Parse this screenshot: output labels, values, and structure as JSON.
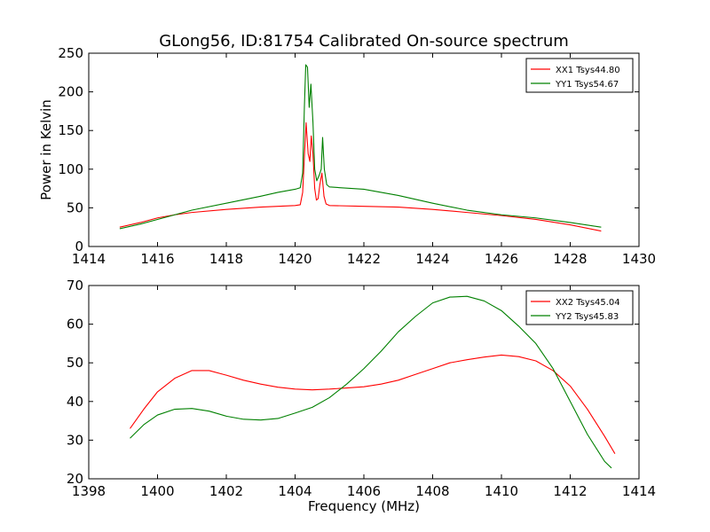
{
  "figure": {
    "title": "GLong56, ID:81754 Calibrated On-source spectrum"
  },
  "chart_data": [
    {
      "type": "line",
      "title": "GLong56, ID:81754 Calibrated On-source spectrum",
      "xlabel": "",
      "ylabel": "Power in Kelvin",
      "xlim": [
        1414,
        1430
      ],
      "ylim": [
        0,
        250
      ],
      "xticks": [
        "1414",
        "1416",
        "1418",
        "1420",
        "1422",
        "1424",
        "1426",
        "1428",
        "1430"
      ],
      "yticks": [
        "0",
        "50",
        "100",
        "150",
        "200",
        "250"
      ],
      "grid": false,
      "legend_position": "top-right",
      "series": [
        {
          "name": "XX1 Tsys44.80",
          "color": "#ff0000",
          "points": [
            [
              1414.9,
              25
            ],
            [
              1415.5,
              31
            ],
            [
              1416.0,
              37
            ],
            [
              1416.5,
              41
            ],
            [
              1417.0,
              44
            ],
            [
              1418.0,
              48
            ],
            [
              1419.0,
              51
            ],
            [
              1419.5,
              52
            ],
            [
              1420.0,
              53
            ],
            [
              1420.15,
              54
            ],
            [
              1420.22,
              70
            ],
            [
              1420.28,
              125
            ],
            [
              1420.32,
              160
            ],
            [
              1420.38,
              120
            ],
            [
              1420.43,
              110
            ],
            [
              1420.47,
              143
            ],
            [
              1420.52,
              120
            ],
            [
              1420.57,
              75
            ],
            [
              1420.62,
              60
            ],
            [
              1420.67,
              62
            ],
            [
              1420.72,
              80
            ],
            [
              1420.78,
              95
            ],
            [
              1420.84,
              65
            ],
            [
              1420.9,
              55
            ],
            [
              1421.0,
              53
            ],
            [
              1422.0,
              52
            ],
            [
              1423.0,
              51
            ],
            [
              1424.0,
              48
            ],
            [
              1425.0,
              44
            ],
            [
              1426.0,
              40
            ],
            [
              1427.0,
              35
            ],
            [
              1428.0,
              28
            ],
            [
              1428.9,
              20
            ]
          ]
        },
        {
          "name": "YY1 Tsys54.67",
          "color": "#008000",
          "points": [
            [
              1414.9,
              23
            ],
            [
              1415.5,
              29
            ],
            [
              1416.0,
              35
            ],
            [
              1416.5,
              41
            ],
            [
              1417.0,
              47
            ],
            [
              1418.0,
              56
            ],
            [
              1419.0,
              65
            ],
            [
              1419.5,
              70
            ],
            [
              1420.0,
              74
            ],
            [
              1420.15,
              76
            ],
            [
              1420.22,
              95
            ],
            [
              1420.27,
              180
            ],
            [
              1420.31,
              235
            ],
            [
              1420.36,
              232
            ],
            [
              1420.41,
              180
            ],
            [
              1420.46,
              210
            ],
            [
              1420.52,
              160
            ],
            [
              1420.57,
              100
            ],
            [
              1420.63,
              85
            ],
            [
              1420.7,
              92
            ],
            [
              1420.76,
              100
            ],
            [
              1420.8,
              141
            ],
            [
              1420.85,
              100
            ],
            [
              1420.92,
              80
            ],
            [
              1421.0,
              77
            ],
            [
              1422.0,
              74
            ],
            [
              1423.0,
              66
            ],
            [
              1424.0,
              56
            ],
            [
              1425.0,
              47
            ],
            [
              1426.0,
              41
            ],
            [
              1427.0,
              37
            ],
            [
              1428.0,
              31
            ],
            [
              1428.9,
              25
            ]
          ]
        }
      ]
    },
    {
      "type": "line",
      "title": "",
      "xlabel": "Frequency (MHz)",
      "ylabel": "",
      "xlim": [
        1398,
        1414
      ],
      "ylim": [
        20,
        70
      ],
      "xticks": [
        "1398",
        "1400",
        "1402",
        "1404",
        "1406",
        "1408",
        "1410",
        "1412",
        "1414"
      ],
      "yticks": [
        "20",
        "30",
        "40",
        "50",
        "60",
        "70"
      ],
      "grid": false,
      "legend_position": "top-right",
      "series": [
        {
          "name": "XX2 Tsys45.04",
          "color": "#ff0000",
          "points": [
            [
              1399.2,
              33
            ],
            [
              1399.6,
              38
            ],
            [
              1400.0,
              42.5
            ],
            [
              1400.5,
              46
            ],
            [
              1401.0,
              48
            ],
            [
              1401.5,
              48
            ],
            [
              1402.0,
              46.8
            ],
            [
              1402.5,
              45.5
            ],
            [
              1403.0,
              44.5
            ],
            [
              1403.5,
              43.7
            ],
            [
              1404.0,
              43.2
            ],
            [
              1404.5,
              43
            ],
            [
              1405.0,
              43.2
            ],
            [
              1405.5,
              43.5
            ],
            [
              1406.0,
              43.8
            ],
            [
              1406.5,
              44.5
            ],
            [
              1407.0,
              45.5
            ],
            [
              1407.5,
              47
            ],
            [
              1408.0,
              48.5
            ],
            [
              1408.5,
              50
            ],
            [
              1409.0,
              50.8
            ],
            [
              1409.5,
              51.5
            ],
            [
              1410.0,
              52
            ],
            [
              1410.5,
              51.6
            ],
            [
              1411.0,
              50.5
            ],
            [
              1411.5,
              48
            ],
            [
              1412.0,
              44
            ],
            [
              1412.5,
              38
            ],
            [
              1413.0,
              31
            ],
            [
              1413.3,
              26.5
            ]
          ]
        },
        {
          "name": "YY2 Tsys45.83",
          "color": "#008000",
          "points": [
            [
              1399.2,
              30.5
            ],
            [
              1399.6,
              34
            ],
            [
              1400.0,
              36.5
            ],
            [
              1400.5,
              38
            ],
            [
              1401.0,
              38.2
            ],
            [
              1401.5,
              37.5
            ],
            [
              1402.0,
              36.2
            ],
            [
              1402.5,
              35.4
            ],
            [
              1403.0,
              35.2
            ],
            [
              1403.5,
              35.6
            ],
            [
              1404.0,
              37
            ],
            [
              1404.5,
              38.5
            ],
            [
              1405.0,
              41
            ],
            [
              1405.5,
              44.5
            ],
            [
              1406.0,
              48.5
            ],
            [
              1406.5,
              53
            ],
            [
              1407.0,
              58
            ],
            [
              1407.5,
              62
            ],
            [
              1408.0,
              65.5
            ],
            [
              1408.5,
              67
            ],
            [
              1409.0,
              67.2
            ],
            [
              1409.5,
              66
            ],
            [
              1410.0,
              63.5
            ],
            [
              1410.5,
              59.5
            ],
            [
              1411.0,
              55
            ],
            [
              1411.5,
              48.5
            ],
            [
              1412.0,
              40
            ],
            [
              1412.5,
              31.5
            ],
            [
              1413.0,
              24.5
            ],
            [
              1413.2,
              22.8
            ]
          ]
        }
      ]
    }
  ]
}
